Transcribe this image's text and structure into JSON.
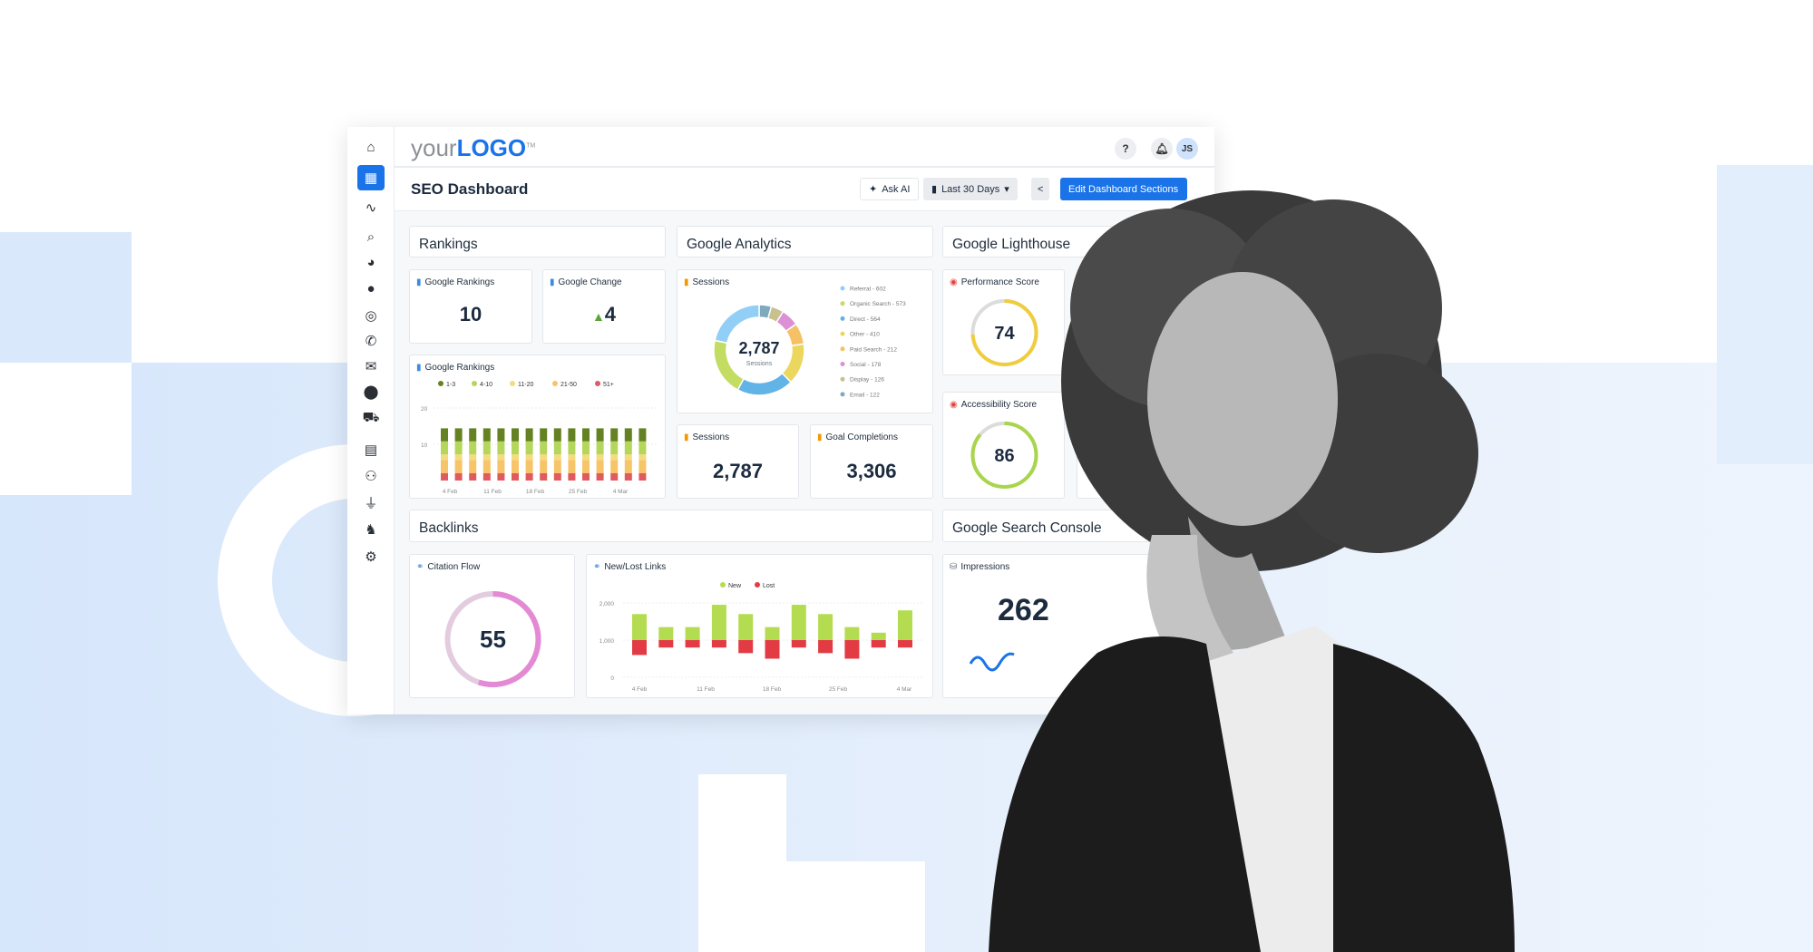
{
  "topbar": {
    "logo_your": "your",
    "logo_brand": "LOGO",
    "logo_tm": "TM",
    "help": "?",
    "user_initials": "JS"
  },
  "sidebar": {
    "items": [
      {
        "icon": "home-icon",
        "glyph": "⌂"
      },
      {
        "icon": "dashboard-icon",
        "glyph": "▦",
        "active": true
      },
      {
        "icon": "pulse-icon",
        "glyph": "∿"
      },
      {
        "icon": "search-icon",
        "glyph": "⌕"
      },
      {
        "icon": "pie-chart-icon",
        "glyph": "◕"
      },
      {
        "icon": "chat-icon",
        "glyph": "●"
      },
      {
        "icon": "target-icon",
        "glyph": "◎"
      },
      {
        "icon": "phone-icon",
        "glyph": "✆"
      },
      {
        "icon": "envelope-icon",
        "glyph": "✉"
      },
      {
        "icon": "map-pin-icon",
        "glyph": "⬤"
      },
      {
        "icon": "cart-icon",
        "glyph": "⛟"
      },
      {
        "icon": "report-icon",
        "glyph": "▤"
      },
      {
        "icon": "users-icon",
        "glyph": "⚇"
      },
      {
        "icon": "plug-icon",
        "glyph": "⏚"
      },
      {
        "icon": "elephant-icon",
        "glyph": "♞"
      },
      {
        "icon": "gear-icon",
        "glyph": "⚙"
      }
    ]
  },
  "header": {
    "title": "SEO Dashboard",
    "ask_ai": "Ask AI",
    "date_range": "Last 30 Days",
    "edit": "Edit Dashboard Sections"
  },
  "colors": {
    "accent": "#1a73e8"
  },
  "sections": {
    "rankings": "Rankings",
    "analytics": "Google Analytics",
    "lighthouse": "Google Lighthouse",
    "backlinks": "Backlinks",
    "search_console": "Google Search Console"
  },
  "cards": {
    "google_rankings": {
      "title": "Google Rankings",
      "value": "10"
    },
    "google_change": {
      "title": "Google Change",
      "value": "4",
      "direction": "up"
    },
    "sessions_kpi": {
      "title": "Sessions",
      "value": "2,787"
    },
    "goal_completions": {
      "title": "Goal Completions",
      "value": "3,306"
    },
    "performance": {
      "title": "Performance Score",
      "value": "74",
      "score": 74,
      "color": "#f0cd3e"
    },
    "accessibility": {
      "title": "Accessibility Score",
      "value": "86",
      "score": 86,
      "color": "#a9d54c"
    },
    "citation_flow": {
      "title": "Citation Flow",
      "value": "55",
      "score": 55,
      "color": "#e48ad4"
    },
    "impressions": {
      "title": "Impressions",
      "value": "262"
    }
  },
  "chart_data": [
    {
      "type": "bar",
      "title": "Google Rankings",
      "stacked": true,
      "categories": [
        "4 Feb",
        "",
        "",
        "11 Feb",
        "",
        "",
        "18 Feb",
        "",
        "",
        "25 Feb",
        "",
        "",
        "4 Mar",
        "",
        ""
      ],
      "x_tick_labels": [
        "4 Feb",
        "11 Feb",
        "18 Feb",
        "25 Feb",
        "4 Mar"
      ],
      "y_ticks": [
        "10",
        "20"
      ],
      "ylim": [
        0,
        20
      ],
      "legend": "top",
      "series": [
        {
          "name": "51+",
          "color": "#e05a5f",
          "values": [
            2,
            2,
            2,
            2,
            2,
            2,
            2,
            2,
            2,
            2,
            2,
            2,
            2,
            2,
            2
          ]
        },
        {
          "name": "21-50",
          "color": "#f7c46a",
          "values": [
            3.7,
            3.7,
            3.7,
            3.7,
            3.7,
            3.7,
            3.7,
            3.7,
            3.7,
            3.7,
            3.7,
            3.7,
            3.7,
            3.7,
            3.7
          ]
        },
        {
          "name": "11-20",
          "color": "#f4dc7e",
          "values": [
            1.5,
            1.5,
            1.5,
            1.5,
            1.5,
            1.5,
            1.5,
            1.5,
            1.5,
            1.5,
            1.5,
            1.5,
            1.5,
            1.5,
            1.5
          ]
        },
        {
          "name": "4-10",
          "color": "#b5d65a",
          "values": [
            3.6,
            3.6,
            3.6,
            3.6,
            3.6,
            3.6,
            3.6,
            3.6,
            3.6,
            3.6,
            3.6,
            3.6,
            3.6,
            3.6,
            3.6
          ]
        },
        {
          "name": "1-3",
          "color": "#658223",
          "values": [
            3.6,
            3.6,
            3.6,
            3.6,
            3.6,
            3.6,
            3.6,
            3.6,
            3.6,
            3.6,
            3.6,
            3.6,
            3.6,
            3.6,
            3.6
          ]
        }
      ]
    },
    {
      "type": "pie",
      "title": "Sessions",
      "center_value": "2,787",
      "center_label": "Sessions",
      "legend": "right",
      "slices": [
        {
          "label": "Referral - 602",
          "value": 602,
          "color": "#92cff7"
        },
        {
          "label": "Organic Search - 573",
          "value": 573,
          "color": "#c3dc62"
        },
        {
          "label": "Direct - 564",
          "value": 564,
          "color": "#62b3e6"
        },
        {
          "label": "Other - 410",
          "value": 410,
          "color": "#ecd75e"
        },
        {
          "label": "Paid Search - 212",
          "value": 212,
          "color": "#f5c164"
        },
        {
          "label": "Social - 178",
          "value": 178,
          "color": "#dd90d5"
        },
        {
          "label": "Display - 126",
          "value": 126,
          "color": "#c8c08f"
        },
        {
          "label": "Email - 122",
          "value": 122,
          "color": "#7fa9bc"
        }
      ]
    },
    {
      "type": "bar",
      "title": "New/Lost Links",
      "stacked": true,
      "baseline": 1000,
      "x_tick_labels": [
        "4 Feb",
        "11 Feb",
        "18 Feb",
        "25 Feb",
        "4 Mar"
      ],
      "y_ticks": [
        "0",
        "1,000",
        "2,000"
      ],
      "ylim": [
        0,
        2000
      ],
      "legend": "top",
      "series": [
        {
          "name": "New",
          "color": "#b4dc50",
          "values": [
            700,
            350,
            350,
            950,
            700,
            350,
            950,
            700,
            350,
            200,
            800
          ]
        },
        {
          "name": "Lost",
          "color": "#e23b44",
          "values": [
            400,
            200,
            200,
            200,
            350,
            500,
            200,
            350,
            500,
            200,
            200
          ]
        }
      ]
    }
  ]
}
